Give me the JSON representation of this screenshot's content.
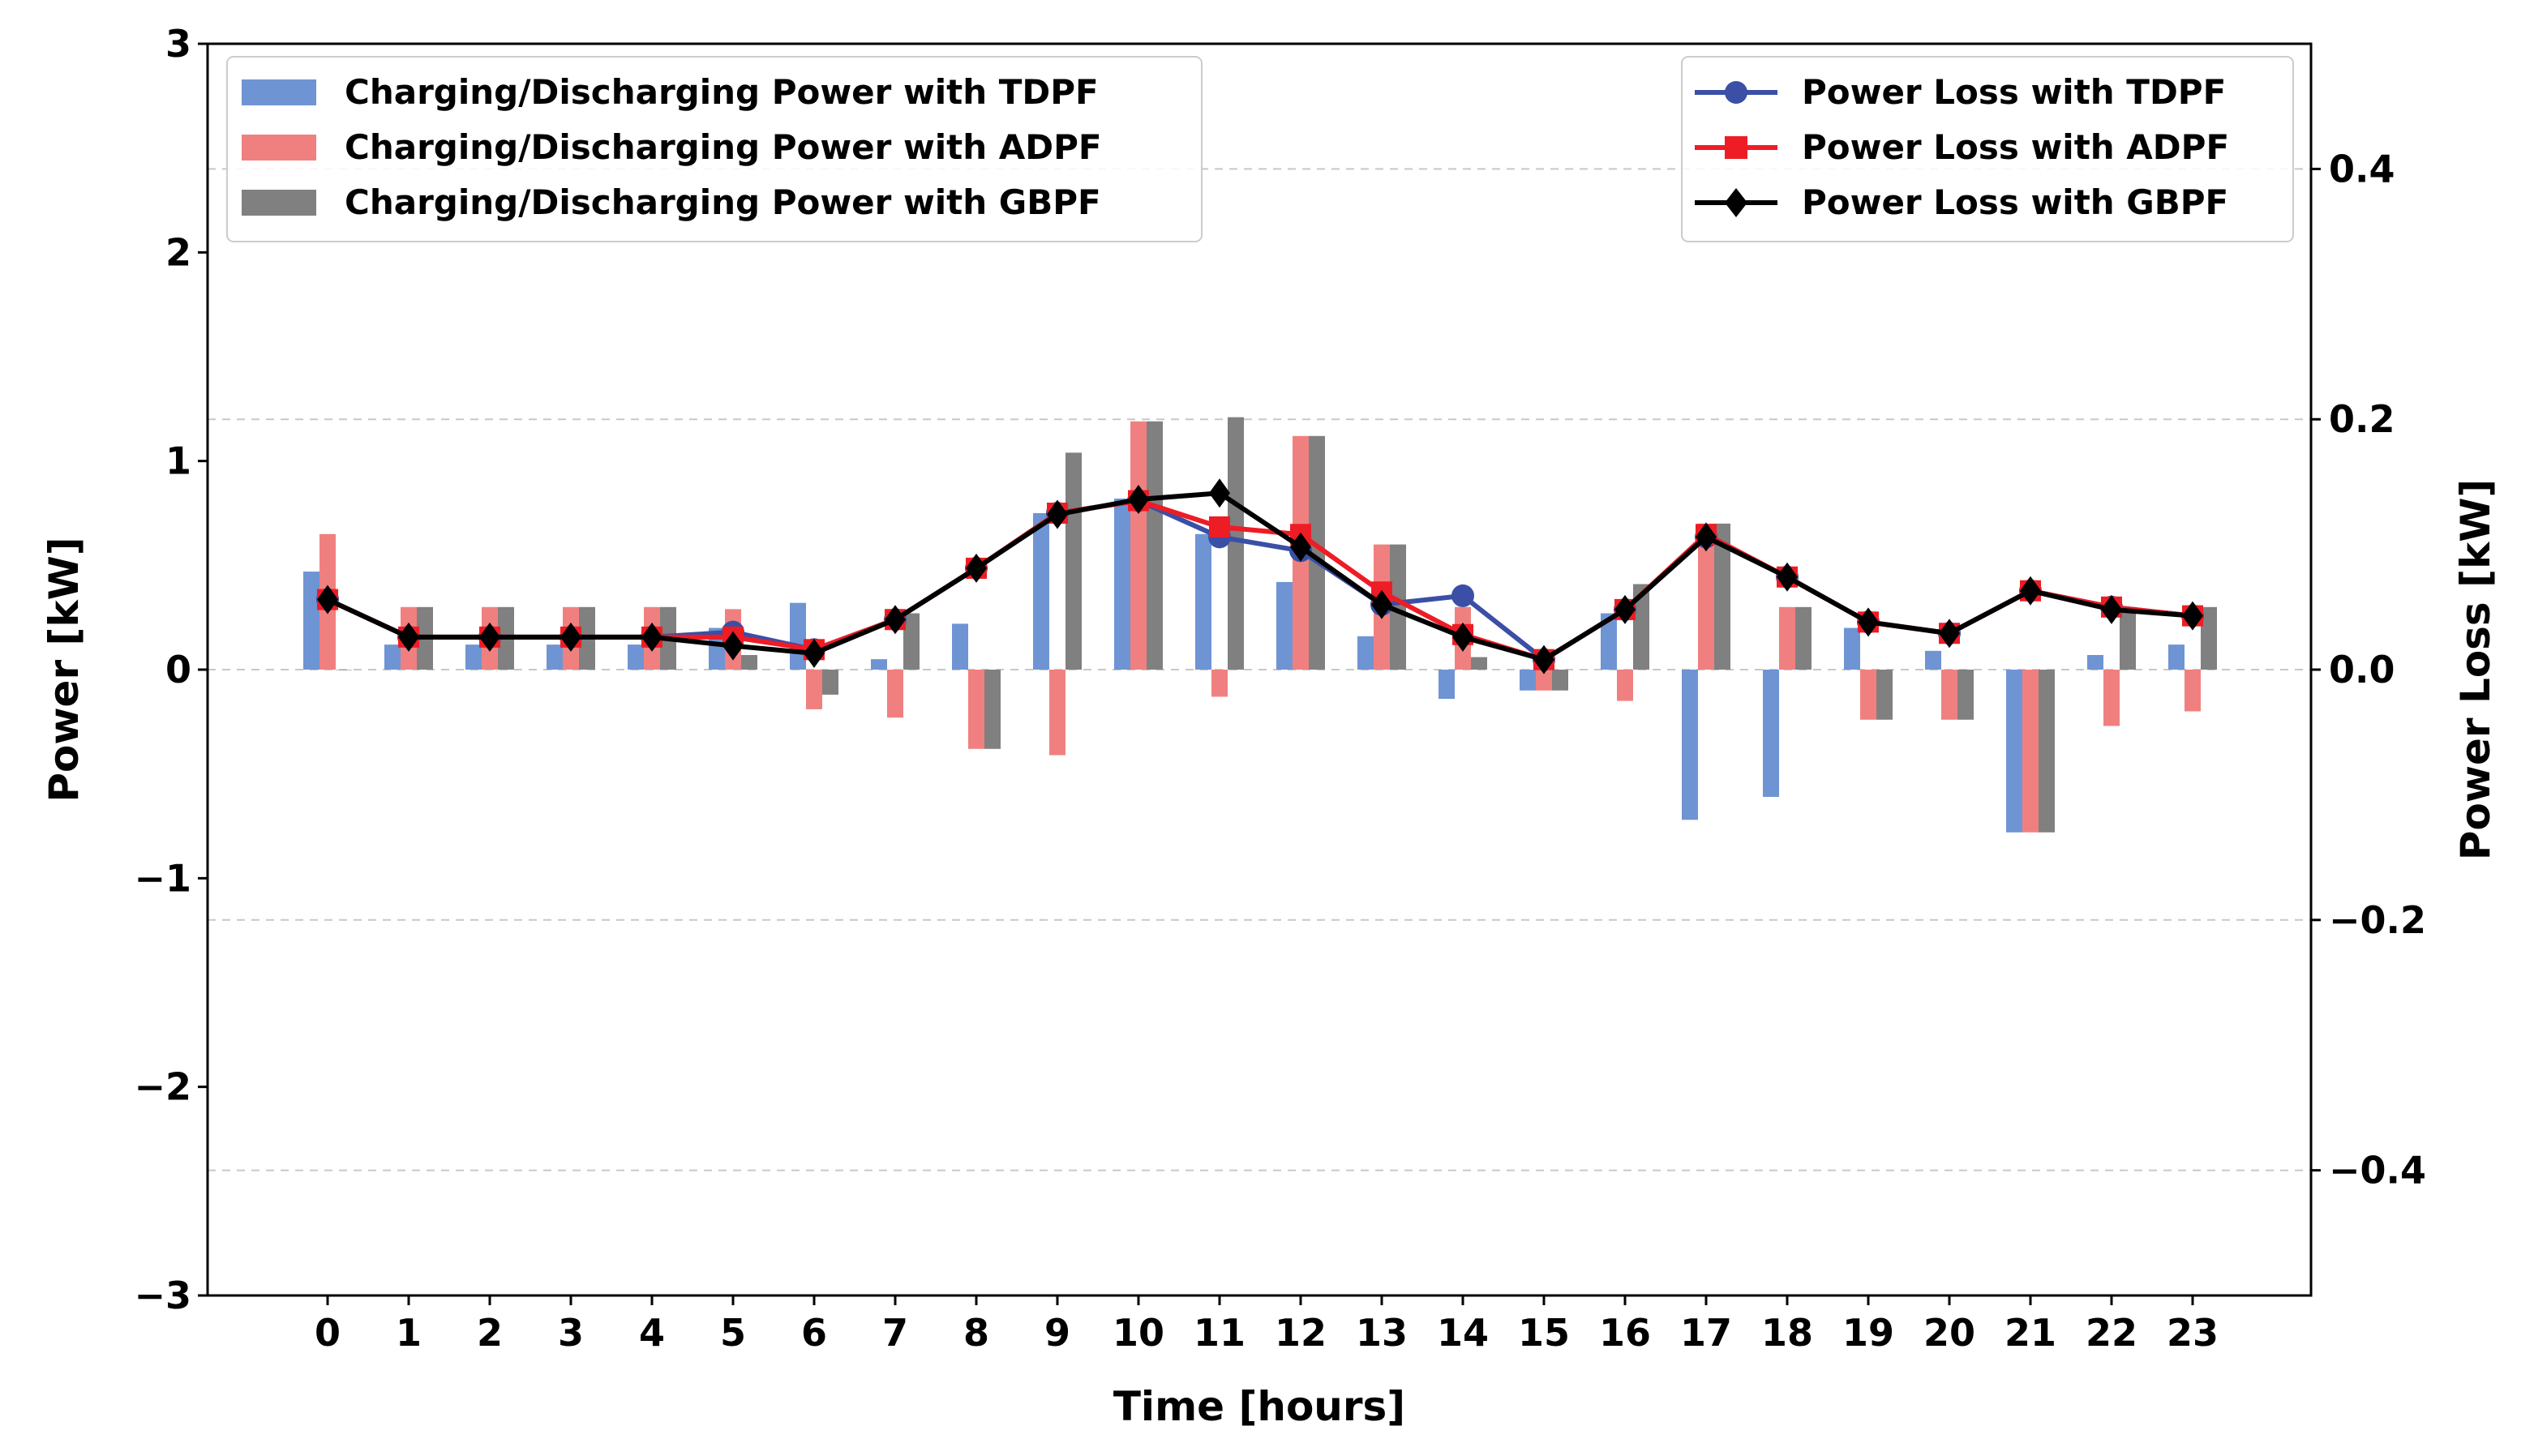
{
  "chart_data": {
    "type": "bar+line",
    "x": [
      0,
      1,
      2,
      3,
      4,
      5,
      6,
      7,
      8,
      9,
      10,
      11,
      12,
      13,
      14,
      15,
      16,
      17,
      18,
      19,
      20,
      21,
      22,
      23
    ],
    "xlabel": "Time [hours]",
    "ylabel_left": "Power [kW]",
    "ylabel_right": "Power Loss [kW]",
    "ylim_left": [
      -3,
      3
    ],
    "ylim_right": [
      -0.5,
      0.5
    ],
    "yticks_left": [
      -3,
      -2,
      -1,
      0,
      1,
      2,
      3
    ],
    "yticks_left_labels": [
      "−3",
      "−2",
      "−1",
      "0",
      "1",
      "2",
      "3"
    ],
    "yticks_right": [
      -0.4,
      -0.2,
      0.0,
      0.2,
      0.4
    ],
    "yticks_right_labels": [
      "−0.4",
      "−0.2",
      "0.0",
      "0.2",
      "0.4"
    ],
    "right_grid": true,
    "bar_series": [
      {
        "name": "Charging/Discharging Power with TDPF",
        "color": "#6f94d3",
        "values": [
          0.47,
          0.12,
          0.12,
          0.12,
          0.12,
          0.2,
          0.32,
          0.05,
          0.22,
          0.75,
          0.82,
          0.65,
          0.42,
          0.16,
          -0.14,
          -0.1,
          0.27,
          -0.72,
          -0.61,
          0.2,
          0.09,
          -0.78,
          0.07,
          0.12
        ]
      },
      {
        "name": "Charging/Discharging Power with ADPF",
        "color": "#f08080",
        "values": [
          0.65,
          0.3,
          0.3,
          0.3,
          0.3,
          0.29,
          -0.19,
          -0.23,
          -0.38,
          -0.41,
          1.19,
          -0.13,
          1.12,
          0.6,
          0.3,
          -0.1,
          -0.15,
          0.7,
          0.3,
          -0.24,
          -0.24,
          -0.78,
          -0.27,
          -0.2
        ]
      },
      {
        "name": "Charging/Discharging Power with GBPF",
        "color": "#808080",
        "values": [
          0.0,
          0.3,
          0.3,
          0.3,
          0.3,
          0.07,
          -0.12,
          0.27,
          -0.38,
          1.04,
          1.19,
          1.21,
          1.12,
          0.6,
          0.06,
          -0.1,
          0.41,
          0.7,
          0.3,
          -0.24,
          -0.24,
          -0.78,
          0.3,
          0.3
        ]
      }
    ],
    "line_series": [
      {
        "name": "Power Loss with TDPF",
        "color": "#3a4fa5",
        "marker": "circle",
        "values": [
          0.056,
          0.026,
          0.026,
          0.026,
          0.026,
          0.03,
          0.016,
          0.04,
          0.081,
          0.125,
          0.135,
          0.106,
          0.095,
          0.052,
          0.059,
          0.008,
          0.048,
          0.106,
          0.074,
          0.038,
          0.029,
          0.063,
          0.05,
          0.043
        ]
      },
      {
        "name": "Power Loss with ADPF",
        "color": "#ee1c25",
        "marker": "square",
        "values": [
          0.056,
          0.026,
          0.026,
          0.026,
          0.026,
          0.026,
          0.016,
          0.04,
          0.081,
          0.125,
          0.135,
          0.114,
          0.108,
          0.062,
          0.028,
          0.008,
          0.048,
          0.108,
          0.074,
          0.038,
          0.029,
          0.063,
          0.05,
          0.043
        ]
      },
      {
        "name": "Power Loss with GBPF",
        "color": "#000000",
        "marker": "diamond",
        "values": [
          0.056,
          0.026,
          0.026,
          0.026,
          0.026,
          0.019,
          0.013,
          0.04,
          0.081,
          0.124,
          0.136,
          0.141,
          0.098,
          0.052,
          0.026,
          0.008,
          0.048,
          0.106,
          0.074,
          0.038,
          0.029,
          0.063,
          0.048,
          0.043
        ]
      }
    ],
    "legend_bars_position": "upper-left",
    "legend_lines_position": "upper-right"
  }
}
